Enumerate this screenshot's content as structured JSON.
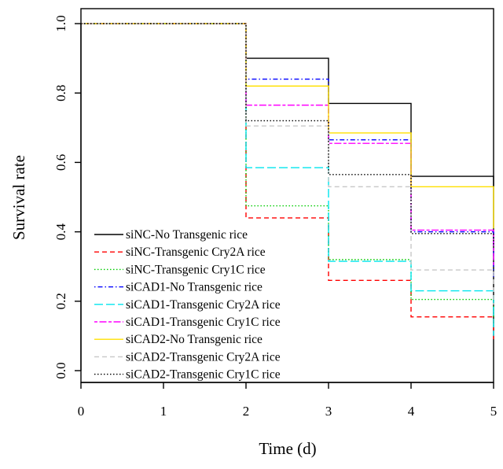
{
  "chart_data": {
    "type": "line",
    "step": true,
    "title": "",
    "xlabel": "Time (d)",
    "ylabel": "Survival rate",
    "xlim": [
      0,
      5
    ],
    "ylim": [
      0,
      1.0
    ],
    "xticks": [
      "0",
      "1",
      "2",
      "3",
      "4",
      "5"
    ],
    "yticks": [
      "0.0",
      "0.2",
      "0.4",
      "0.6",
      "0.8",
      "1.0"
    ],
    "grid": false,
    "legend_position": "bottom-left",
    "x": [
      0,
      2,
      3,
      4,
      5
    ],
    "series": [
      {
        "name": "siNC-No Transgenic rice",
        "values": [
          1.0,
          0.9,
          0.77,
          0.56,
          0.53
        ],
        "color": "#000000",
        "dash": "solid"
      },
      {
        "name": "siNC-Transgenic Cry2A rice",
        "values": [
          1.0,
          0.44,
          0.26,
          0.155,
          0.09
        ],
        "color": "#ff0000",
        "dash": "dashed"
      },
      {
        "name": "siNC-Transgenic Cry1C rice",
        "values": [
          1.0,
          0.475,
          0.32,
          0.205,
          0.13
        ],
        "color": "#00cc00",
        "dash": "dotted"
      },
      {
        "name": "siCAD1-No Transgenic rice",
        "values": [
          1.0,
          0.84,
          0.665,
          0.4,
          0.27
        ],
        "color": "#0000ff",
        "dash": "dotdash"
      },
      {
        "name": "siCAD1-Transgenic Cry2A rice",
        "values": [
          1.0,
          0.585,
          0.315,
          0.23,
          0.1
        ],
        "color": "#00e5ee",
        "dash": "longdash"
      },
      {
        "name": "siCAD1-Transgenic Cry1C rice",
        "values": [
          1.0,
          0.765,
          0.655,
          0.405,
          0.3
        ],
        "color": "#ff00ff",
        "dash": "twodash"
      },
      {
        "name": "siCAD2-No Transgenic rice",
        "values": [
          1.0,
          0.82,
          0.685,
          0.53,
          0.41
        ],
        "color": "#ffe000",
        "dash": "solid"
      },
      {
        "name": "siCAD2-Transgenic Cry2A rice",
        "values": [
          1.0,
          0.705,
          0.53,
          0.29,
          0.19
        ],
        "color": "#c8c8c8",
        "dash": "dashed"
      },
      {
        "name": "siCAD2-Transgenic Cry1C rice",
        "values": [
          1.0,
          0.72,
          0.565,
          0.395,
          0.36
        ],
        "color": "#000000",
        "dash": "dotted"
      }
    ]
  }
}
